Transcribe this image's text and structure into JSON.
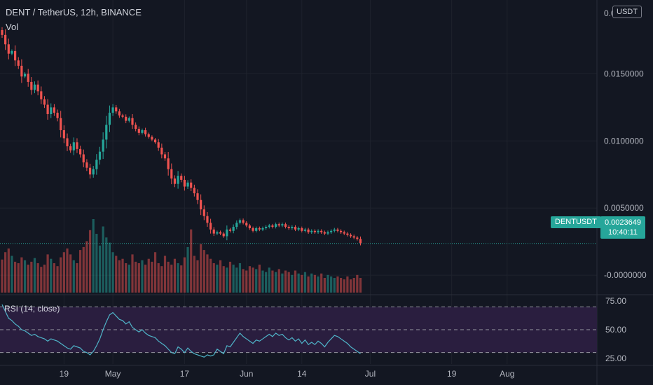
{
  "header": {
    "title": "DENT / TetherUS, 12h, BINANCE",
    "volume_label": "Vol",
    "currency_button": "USDT"
  },
  "indicator": {
    "label": "RSI (14, close)"
  },
  "price_badge": {
    "symbol": "DENTUSDT",
    "price": "0.0023649",
    "countdown": "10:40:11"
  },
  "colors": {
    "background": "#131722",
    "up": "#26a69a",
    "down": "#ef5350",
    "rsi_line": "#4fb4c8",
    "rsi_band": "#2a1e3f"
  },
  "chart_data": [
    {
      "type": "candlestick",
      "title": "DENT / TetherUS, 12h, BINANCE",
      "y_ticks": [
        "0.0150000",
        "0.0100000",
        "0.0050000",
        "-0.0000000"
      ],
      "y_tick_values": [
        0.015,
        0.01,
        0.005,
        0.0
      ],
      "y_top_partial_label": "0.0",
      "ylim": [
        -0.0013,
        0.0205
      ],
      "x_ticks": [
        "19",
        "May",
        "17",
        "Jun",
        "14",
        "Jul",
        "19",
        "Aug"
      ],
      "x_tick_bar_index": [
        19,
        34,
        56,
        75,
        92,
        113,
        138,
        155
      ],
      "last_price": 0.0023649,
      "close": [
        0.0179,
        0.0172,
        0.0165,
        0.0167,
        0.016,
        0.0156,
        0.0148,
        0.015,
        0.0144,
        0.0138,
        0.0142,
        0.0137,
        0.0131,
        0.0127,
        0.012,
        0.0125,
        0.0121,
        0.0117,
        0.0108,
        0.0102,
        0.0096,
        0.0093,
        0.0099,
        0.0094,
        0.009,
        0.0084,
        0.008,
        0.0075,
        0.0079,
        0.0086,
        0.0092,
        0.0101,
        0.0112,
        0.0121,
        0.0125,
        0.0122,
        0.0119,
        0.0118,
        0.0115,
        0.0117,
        0.0112,
        0.0109,
        0.0106,
        0.0108,
        0.0105,
        0.0103,
        0.0101,
        0.0099,
        0.0095,
        0.009,
        0.0087,
        0.0079,
        0.0072,
        0.0068,
        0.0074,
        0.0071,
        0.0066,
        0.0069,
        0.0065,
        0.0061,
        0.0056,
        0.0049,
        0.0044,
        0.0039,
        0.0034,
        0.0031,
        0.0032,
        0.0031,
        0.0029,
        0.0034,
        0.0033,
        0.0036,
        0.0039,
        0.0041,
        0.0039,
        0.0037,
        0.0035,
        0.0033,
        0.0035,
        0.0034,
        0.0035,
        0.0036,
        0.0037,
        0.0036,
        0.0038,
        0.0037,
        0.0038,
        0.0036,
        0.0035,
        0.0036,
        0.0034,
        0.0035,
        0.0033,
        0.0034,
        0.0032,
        0.0033,
        0.0032,
        0.0033,
        0.0032,
        0.0031,
        0.0032,
        0.0033,
        0.0034,
        0.0033,
        0.0032,
        0.0031,
        0.003,
        0.0029,
        0.0028,
        0.0027,
        0.0024
      ],
      "volume": [
        0.45,
        0.55,
        0.6,
        0.5,
        0.42,
        0.4,
        0.48,
        0.44,
        0.38,
        0.42,
        0.47,
        0.4,
        0.35,
        0.38,
        0.52,
        0.46,
        0.4,
        0.36,
        0.48,
        0.55,
        0.6,
        0.52,
        0.44,
        0.4,
        0.58,
        0.62,
        0.7,
        0.85,
        1.0,
        0.8,
        0.64,
        0.9,
        0.75,
        0.68,
        0.55,
        0.5,
        0.44,
        0.46,
        0.4,
        0.38,
        0.52,
        0.42,
        0.4,
        0.44,
        0.38,
        0.46,
        0.42,
        0.55,
        0.4,
        0.36,
        0.5,
        0.42,
        0.38,
        0.46,
        0.4,
        0.37,
        0.48,
        0.62,
        0.86,
        0.5,
        0.44,
        0.66,
        0.58,
        0.52,
        0.46,
        0.4,
        0.38,
        0.44,
        0.36,
        0.34,
        0.42,
        0.38,
        0.34,
        0.4,
        0.32,
        0.3,
        0.36,
        0.34,
        0.32,
        0.38,
        0.3,
        0.28,
        0.34,
        0.3,
        0.28,
        0.32,
        0.26,
        0.3,
        0.28,
        0.24,
        0.3,
        0.26,
        0.24,
        0.28,
        0.22,
        0.26,
        0.24,
        0.22,
        0.26,
        0.2,
        0.24,
        0.22,
        0.2,
        0.22,
        0.2,
        0.18,
        0.22,
        0.18,
        0.2,
        0.24,
        0.2
      ]
    },
    {
      "type": "line",
      "title": "RSI (14, close)",
      "y_ticks": [
        "75.00",
        "50.00",
        "25.00"
      ],
      "y_tick_values": [
        75,
        50,
        25
      ],
      "ylim": [
        20,
        80
      ],
      "bands": [
        70,
        50,
        30
      ],
      "values": [
        72,
        66,
        60,
        58,
        55,
        53,
        50,
        49,
        47,
        45,
        46,
        44,
        43,
        42,
        40,
        42,
        41,
        40,
        38,
        36,
        34,
        33,
        36,
        35,
        34,
        31,
        30,
        28,
        31,
        36,
        42,
        50,
        57,
        63,
        65,
        62,
        59,
        58,
        55,
        57,
        52,
        50,
        48,
        50,
        47,
        45,
        44,
        43,
        40,
        38,
        36,
        33,
        30,
        29,
        35,
        33,
        30,
        34,
        31,
        29,
        28,
        27,
        26,
        28,
        27,
        28,
        33,
        31,
        29,
        36,
        35,
        39,
        43,
        47,
        44,
        42,
        40,
        38,
        41,
        40,
        42,
        44,
        46,
        44,
        47,
        45,
        46,
        43,
        41,
        43,
        40,
        42,
        38,
        41,
        37,
        39,
        37,
        40,
        38,
        35,
        39,
        42,
        45,
        44,
        42,
        40,
        38,
        35,
        33,
        31,
        29
      ]
    }
  ]
}
